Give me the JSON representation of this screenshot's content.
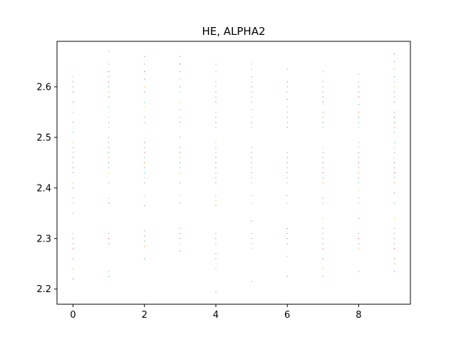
{
  "chart_data": {
    "type": "scatter",
    "title": "HE, ALPHA2",
    "xlabel": "",
    "ylabel": "",
    "xlim": [
      -0.45,
      9.45
    ],
    "ylim": [
      2.17,
      2.69
    ],
    "x_ticks": [
      0,
      2,
      4,
      6,
      8
    ],
    "x_tick_labels": [
      "0",
      "2",
      "4",
      "6",
      "8"
    ],
    "y_ticks": [
      2.2,
      2.3,
      2.4,
      2.5,
      2.6
    ],
    "y_tick_labels": [
      "2.2",
      "2.3",
      "2.4",
      "2.5",
      "2.6"
    ],
    "grid": false,
    "legend": "none",
    "marker": "pixel",
    "colors": [
      "#1f77b4",
      "#ff7f0e",
      "#2ca02c",
      "#d62728",
      "#9467bd",
      "#8c564b",
      "#e377c2",
      "#7f7f7f",
      "#bcbd22",
      "#17becf"
    ],
    "series": [
      {
        "x": 0,
        "y": [
          2.22,
          2.24,
          2.26,
          2.28,
          2.29,
          2.3,
          2.31,
          2.35,
          2.37,
          2.38,
          2.4,
          2.41,
          2.43,
          2.44,
          2.45,
          2.46,
          2.47,
          2.48,
          2.49,
          2.51,
          2.53,
          2.55,
          2.57,
          2.59,
          2.6,
          2.61,
          2.62
        ]
      },
      {
        "x": 1,
        "y": [
          2.225,
          2.235,
          2.29,
          2.3,
          2.31,
          2.37,
          2.38,
          2.41,
          2.43,
          2.44,
          2.45,
          2.46,
          2.47,
          2.48,
          2.49,
          2.5,
          2.52,
          2.53,
          2.54,
          2.56,
          2.58,
          2.59,
          2.6,
          2.61,
          2.62,
          2.63,
          2.645,
          2.67
        ]
      },
      {
        "x": 2,
        "y": [
          2.26,
          2.285,
          2.295,
          2.305,
          2.315,
          2.365,
          2.385,
          2.41,
          2.42,
          2.43,
          2.44,
          2.45,
          2.46,
          2.47,
          2.48,
          2.49,
          2.53,
          2.54,
          2.56,
          2.57,
          2.59,
          2.6,
          2.615,
          2.63,
          2.645,
          2.66
        ]
      },
      {
        "x": 3,
        "y": [
          2.275,
          2.29,
          2.3,
          2.31,
          2.32,
          2.37,
          2.385,
          2.41,
          2.43,
          2.44,
          2.45,
          2.46,
          2.47,
          2.48,
          2.5,
          2.53,
          2.54,
          2.555,
          2.57,
          2.59,
          2.6,
          2.615,
          2.63,
          2.645,
          2.66
        ]
      },
      {
        "x": 4,
        "y": [
          2.195,
          2.24,
          2.26,
          2.27,
          2.29,
          2.3,
          2.31,
          2.365,
          2.375,
          2.385,
          2.41,
          2.42,
          2.43,
          2.44,
          2.45,
          2.46,
          2.47,
          2.48,
          2.49,
          2.52,
          2.53,
          2.54,
          2.55,
          2.57,
          2.58,
          2.59,
          2.6,
          2.61,
          2.63,
          2.645
        ]
      },
      {
        "x": 5,
        "y": [
          2.215,
          2.28,
          2.29,
          2.3,
          2.31,
          2.335,
          2.37,
          2.385,
          2.41,
          2.42,
          2.43,
          2.44,
          2.45,
          2.46,
          2.47,
          2.48,
          2.52,
          2.53,
          2.54,
          2.555,
          2.57,
          2.58,
          2.59,
          2.6,
          2.61,
          2.62,
          2.635,
          2.645
        ]
      },
      {
        "x": 6,
        "y": [
          2.225,
          2.265,
          2.29,
          2.3,
          2.31,
          2.32,
          2.37,
          2.385,
          2.41,
          2.42,
          2.43,
          2.44,
          2.45,
          2.46,
          2.47,
          2.52,
          2.53,
          2.54,
          2.55,
          2.56,
          2.575,
          2.59,
          2.6,
          2.61,
          2.635
        ]
      },
      {
        "x": 7,
        "y": [
          2.225,
          2.24,
          2.26,
          2.28,
          2.29,
          2.3,
          2.31,
          2.32,
          2.34,
          2.37,
          2.38,
          2.41,
          2.42,
          2.43,
          2.44,
          2.45,
          2.46,
          2.47,
          2.48,
          2.52,
          2.53,
          2.54,
          2.55,
          2.57,
          2.58,
          2.59,
          2.6,
          2.61,
          2.63
        ]
      },
      {
        "x": 8,
        "y": [
          2.235,
          2.28,
          2.29,
          2.3,
          2.31,
          2.34,
          2.37,
          2.38,
          2.395,
          2.41,
          2.42,
          2.43,
          2.44,
          2.45,
          2.46,
          2.47,
          2.48,
          2.49,
          2.52,
          2.53,
          2.54,
          2.55,
          2.565,
          2.58,
          2.59,
          2.6,
          2.61,
          2.625
        ]
      },
      {
        "x": 9,
        "y": [
          2.235,
          2.25,
          2.26,
          2.28,
          2.29,
          2.3,
          2.31,
          2.32,
          2.34,
          2.37,
          2.39,
          2.41,
          2.42,
          2.43,
          2.44,
          2.45,
          2.46,
          2.47,
          2.48,
          2.49,
          2.51,
          2.52,
          2.53,
          2.54,
          2.55,
          2.57,
          2.58,
          2.59,
          2.6,
          2.61,
          2.62,
          2.635,
          2.65,
          2.665
        ]
      }
    ]
  }
}
